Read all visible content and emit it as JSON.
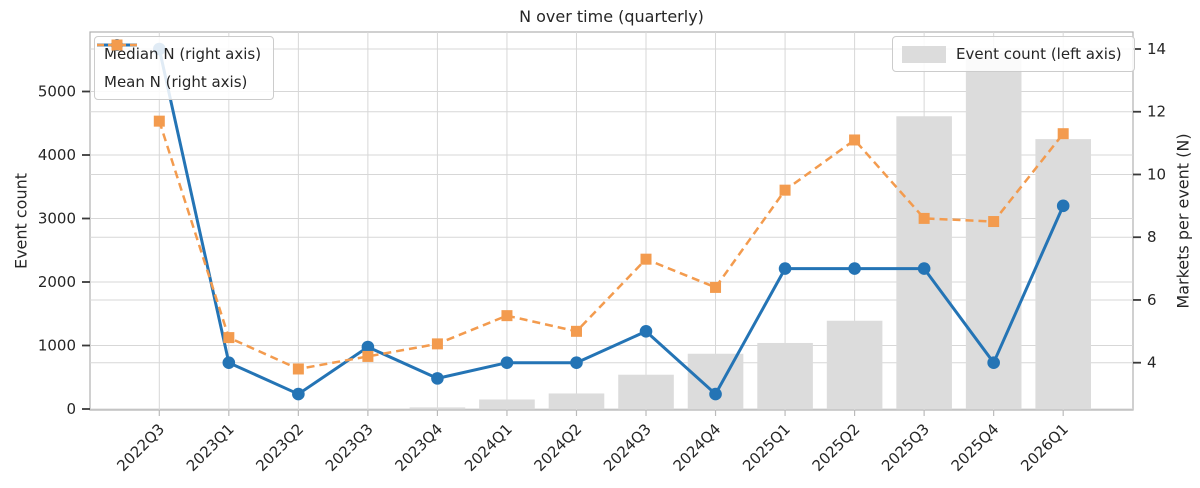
{
  "title": "N over time (quarterly)",
  "left_axis": {
    "label": "Event count",
    "ticks": [
      0,
      1000,
      2000,
      3000,
      4000,
      5000
    ],
    "range": [
      0,
      5940
    ]
  },
  "right_axis": {
    "label": "Markets per event (N)",
    "ticks": [
      4,
      6,
      8,
      10,
      12,
      14
    ],
    "range": [
      2.45,
      14.55
    ]
  },
  "legend_lines": [
    {
      "label": "Median N (right axis)",
      "color": "#2474b5",
      "marker": "circle",
      "style": "solid"
    },
    {
      "label": "Mean N (right axis)",
      "color": "#f39b4e",
      "marker": "square",
      "style": "dashed"
    }
  ],
  "legend_bar": {
    "label": "Event count (left axis)",
    "color": "#dcdcdc"
  },
  "colors": {
    "bar": "#dcdcdc",
    "median": "#2474b5",
    "mean": "#f39b4e",
    "grid": "#d7d7d7",
    "spine": "#b0b0b0",
    "tick": "#3a3a3a",
    "text": "#262626"
  },
  "chart_data": {
    "type": "bar",
    "title": "N over time (quarterly)",
    "xlabel": "",
    "ylabel_left": "Event count",
    "ylabel_right": "Markets per event (N)",
    "grid": true,
    "legend_position_lines": "upper left",
    "legend_position_bar": "upper right",
    "categories": [
      "2022Q3",
      "2023Q1",
      "2023Q2",
      "2023Q3",
      "2023Q4",
      "2024Q1",
      "2024Q2",
      "2024Q3",
      "2024Q4",
      "2025Q1",
      "2025Q2",
      "2025Q3",
      "2025Q4",
      "2026Q1"
    ],
    "series": [
      {
        "name": "Event count (left axis)",
        "type": "bar",
        "axis": "left",
        "color": "#dcdcdc",
        "values": [
          0,
          0,
          0,
          0,
          25,
          150,
          245,
          540,
          870,
          1040,
          1390,
          4610,
          5600,
          4250
        ]
      },
      {
        "name": "Median N (right axis)",
        "type": "line",
        "axis": "right",
        "color": "#2474b5",
        "marker": "circle",
        "line_style": "solid",
        "values": [
          14,
          4,
          3,
          4.5,
          3.5,
          4,
          4,
          5,
          3,
          7,
          7,
          7,
          4,
          9
        ]
      },
      {
        "name": "Mean N (right axis)",
        "type": "line",
        "axis": "right",
        "color": "#f39b4e",
        "marker": "square",
        "line_style": "dashed",
        "values": [
          11.7,
          4.8,
          3.8,
          4.2,
          4.6,
          5.5,
          5.0,
          7.3,
          6.4,
          9.5,
          11.1,
          8.6,
          8.5,
          11.3
        ]
      }
    ],
    "ylim_left": [
      0,
      5940
    ],
    "ylim_right": [
      2.45,
      14.55
    ]
  }
}
